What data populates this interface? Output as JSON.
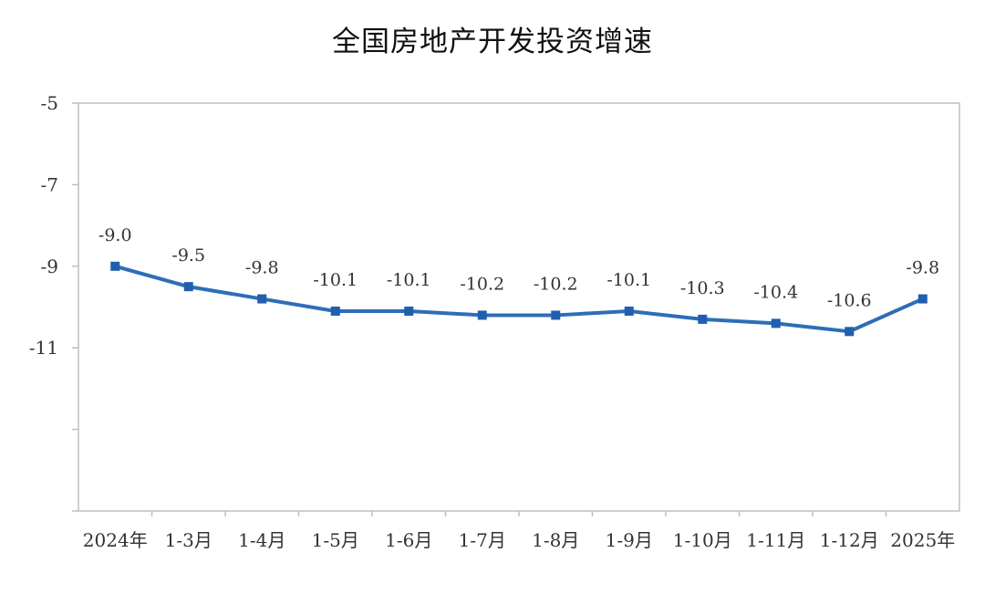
{
  "chart_data": {
    "type": "line",
    "title": "全国房地产开发投资增速",
    "xlabel": "",
    "ylabel": "",
    "categories": [
      "2024年",
      "1-3月",
      "1-4月",
      "1-5月",
      "1-6月",
      "1-7月",
      "1-8月",
      "1-9月",
      "1-10月",
      "1-11月",
      "1-12月",
      "2025年"
    ],
    "series": [
      {
        "values": [
          -9.0,
          -9.5,
          -9.8,
          -10.1,
          -10.1,
          -10.2,
          -10.2,
          -10.1,
          -10.3,
          -10.4,
          -10.6,
          -9.8
        ],
        "labels": [
          "-9.0",
          "-9.5",
          "-9.8",
          "-10.1",
          "-10.1",
          "-10.2",
          "-10.2",
          "-10.1",
          "-10.3",
          "-10.4",
          "-10.6",
          "-9.8"
        ],
        "color": "#2E6DB8"
      }
    ],
    "yticks": [
      -5,
      -7,
      -9,
      -11,
      -13,
      -15
    ],
    "ytick_labels": [
      "-5",
      "-7",
      "-9",
      "-11",
      "",
      ""
    ],
    "ylim": [
      -15,
      -5
    ],
    "grid": false,
    "legend": "none",
    "colors": {
      "line": "#2E6DB8",
      "marker": "#1F5FAE",
      "axis": "#BFBFBF"
    }
  }
}
